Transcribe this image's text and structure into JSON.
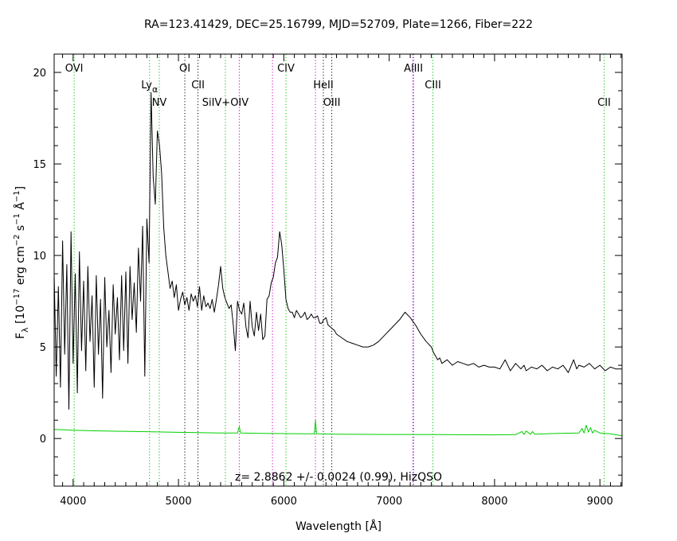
{
  "chart_data": {
    "type": "line",
    "title": "RA=123.41429, DEC=25.16799, MJD=52709, Plate=1266, Fiber=222",
    "xlabel": "Wavelength [Å]",
    "ylabel": {
      "prefix": "F",
      "sub": "λ",
      "rest": " [10",
      "e1": "−17",
      "mid": " erg cm",
      "e2": "−2",
      "mid2": " s",
      "e3": "−1",
      "mid3": " Å",
      "e4": "−1",
      "end": "]"
    },
    "xlim": [
      3820,
      9210
    ],
    "ylim": [
      -2.6,
      21.0
    ],
    "xticks": [
      4000,
      5000,
      6000,
      7000,
      8000,
      9000
    ],
    "yticks": [
      0,
      5,
      10,
      15,
      20
    ],
    "grid": false,
    "annotation": "z= 2.8862 +/- 0.0024 (0.99), HizQSO",
    "lines": [
      {
        "label": "OVI",
        "x": 4010,
        "color": "#00c000",
        "row": 1
      },
      {
        "label": "Lyα",
        "x": 4725,
        "color": "#00c000",
        "row": 2
      },
      {
        "label": "NV",
        "x": 4818,
        "color": "#00c000",
        "row": 3
      },
      {
        "label": "OI",
        "x": 5060,
        "color": "#000000",
        "row": 1
      },
      {
        "label": "CII",
        "x": 5185,
        "color": "#000000",
        "row": 2
      },
      {
        "label": "SiIV+OIV",
        "x": 5445,
        "color": "#00c000",
        "row": 3
      },
      {
        "label": "",
        "x": 5577,
        "color": "#c000c0",
        "row": 0
      },
      {
        "label": "",
        "x": 5892,
        "color": "#c000c0",
        "row": 0
      },
      {
        "label": "CIV",
        "x": 6020,
        "color": "#00c000",
        "row": 1
      },
      {
        "label": "",
        "x": 6300,
        "color": "#c000c0",
        "row": 0
      },
      {
        "label": "HeII",
        "x": 6375,
        "color": "#000000",
        "row": 2
      },
      {
        "label": "OIII",
        "x": 6455,
        "color": "#000000",
        "row": 3
      },
      {
        "label": "AlIII",
        "x": 7230,
        "color": "#0000c0",
        "row": 1
      },
      {
        "label": "",
        "x": 7225,
        "color": "#c000c0",
        "row": 0
      },
      {
        "label": "CIII",
        "x": 7415,
        "color": "#00c000",
        "row": 2
      },
      {
        "label": "CII",
        "x": 9040,
        "color": "#00c000",
        "row": 3
      }
    ],
    "series": [
      {
        "color": "#000000",
        "x": [
          3820,
          3840,
          3860,
          3880,
          3900,
          3920,
          3940,
          3960,
          3980,
          4000,
          4020,
          4040,
          4060,
          4080,
          4100,
          4120,
          4140,
          4160,
          4180,
          4200,
          4220,
          4240,
          4260,
          4280,
          4300,
          4320,
          4340,
          4360,
          4380,
          4400,
          4420,
          4440,
          4460,
          4480,
          4500,
          4520,
          4540,
          4560,
          4580,
          4600,
          4620,
          4640,
          4660,
          4680,
          4700,
          4720,
          4740,
          4760,
          4780,
          4800,
          4820,
          4840,
          4860,
          4880,
          4900,
          4920,
          4940,
          4960,
          4980,
          5000,
          5020,
          5040,
          5060,
          5080,
          5100,
          5120,
          5140,
          5160,
          5180,
          5200,
          5220,
          5240,
          5260,
          5280,
          5300,
          5320,
          5340,
          5360,
          5380,
          5400,
          5420,
          5440,
          5460,
          5480,
          5500,
          5520,
          5540,
          5560,
          5580,
          5600,
          5620,
          5640,
          5660,
          5680,
          5700,
          5720,
          5740,
          5760,
          5780,
          5800,
          5820,
          5840,
          5860,
          5880,
          5900,
          5920,
          5940,
          5960,
          5980,
          6000,
          6020,
          6040,
          6060,
          6080,
          6100,
          6120,
          6140,
          6160,
          6180,
          6200,
          6220,
          6240,
          6260,
          6280,
          6300,
          6320,
          6340,
          6360,
          6380,
          6400,
          6420,
          6440,
          6460,
          6480,
          6500,
          6550,
          6600,
          6650,
          6700,
          6750,
          6800,
          6850,
          6900,
          6950,
          7000,
          7050,
          7100,
          7150,
          7200,
          7250,
          7300,
          7350,
          7400,
          7420,
          7440,
          7460,
          7480,
          7500,
          7550,
          7600,
          7650,
          7700,
          7750,
          7800,
          7850,
          7900,
          7950,
          8000,
          8050,
          8100,
          8150,
          8200,
          8250,
          8280,
          8300,
          8350,
          8400,
          8450,
          8500,
          8550,
          8600,
          8650,
          8700,
          8750,
          8780,
          8800,
          8850,
          8900,
          8950,
          9000,
          9050,
          9100,
          9150,
          9210
        ],
        "y": [
          9.0,
          3.4,
          8.3,
          2.8,
          10.8,
          4.6,
          9.5,
          1.6,
          11.3,
          4.1,
          9.0,
          2.5,
          10.2,
          4.8,
          8.6,
          3.7,
          9.4,
          5.3,
          7.8,
          2.8,
          8.9,
          4.6,
          7.6,
          2.2,
          8.8,
          5.0,
          7.0,
          3.6,
          8.4,
          5.7,
          7.7,
          4.3,
          8.9,
          4.8,
          9.1,
          4.1,
          9.4,
          6.5,
          8.5,
          5.8,
          10.4,
          7.5,
          11.6,
          3.4,
          12.0,
          9.6,
          18.9,
          14.3,
          12.8,
          16.8,
          16.0,
          14.5,
          11.5,
          10.0,
          9.1,
          8.2,
          8.6,
          7.7,
          8.4,
          7.0,
          7.6,
          8.0,
          7.3,
          7.7,
          7.0,
          7.9,
          7.5,
          7.8,
          7.2,
          8.3,
          7.0,
          7.8,
          7.2,
          7.4,
          7.1,
          7.6,
          6.9,
          7.6,
          8.4,
          9.4,
          8.2,
          7.7,
          7.4,
          7.1,
          7.3,
          6.2,
          4.8,
          7.5,
          7.0,
          6.8,
          7.4,
          6.1,
          5.5,
          7.5,
          6.1,
          5.6,
          6.9,
          5.9,
          6.8,
          5.4,
          5.6,
          7.6,
          7.8,
          8.5,
          8.8,
          9.6,
          9.9,
          11.3,
          10.6,
          9.2,
          7.6,
          7.1,
          6.9,
          6.9,
          6.6,
          7.0,
          6.8,
          6.6,
          6.7,
          6.9,
          6.5,
          6.6,
          6.8,
          6.6,
          6.6,
          6.7,
          6.3,
          6.3,
          6.5,
          6.6,
          6.2,
          6.1,
          6.0,
          5.9,
          5.7,
          5.5,
          5.3,
          5.2,
          5.1,
          5.0,
          5.0,
          5.1,
          5.3,
          5.6,
          5.9,
          6.2,
          6.5,
          6.9,
          6.6,
          6.2,
          5.7,
          5.3,
          5.0,
          4.7,
          4.5,
          4.3,
          4.4,
          4.1,
          4.3,
          4.0,
          4.2,
          4.1,
          4.0,
          4.1,
          3.9,
          4.0,
          3.9,
          3.9,
          3.8,
          4.3,
          3.7,
          4.1,
          3.8,
          4.0,
          3.7,
          3.9,
          3.8,
          4.0,
          3.7,
          3.9,
          3.8,
          4.0,
          3.6,
          4.3,
          3.8,
          4.0,
          3.9,
          4.1,
          3.8,
          4.0,
          3.7,
          3.9,
          3.8,
          3.8
        ]
      },
      {
        "color": "#00d000",
        "x": [
          3820,
          4000,
          4200,
          4400,
          4600,
          4800,
          5000,
          5200,
          5400,
          5560,
          5577,
          5590,
          5800,
          6000,
          6200,
          6290,
          6300,
          6310,
          6500,
          7000,
          7500,
          8000,
          8200,
          8260,
          8280,
          8300,
          8340,
          8360,
          8380,
          8600,
          8800,
          8830,
          8850,
          8870,
          8890,
          8910,
          8930,
          8950,
          9000,
          9100,
          9210
        ],
        "y": [
          0.5,
          0.45,
          0.42,
          0.4,
          0.38,
          0.36,
          0.34,
          0.32,
          0.3,
          0.3,
          0.65,
          0.3,
          0.28,
          0.27,
          0.26,
          0.26,
          1.0,
          0.26,
          0.24,
          0.22,
          0.21,
          0.2,
          0.21,
          0.38,
          0.22,
          0.41,
          0.23,
          0.38,
          0.24,
          0.28,
          0.3,
          0.55,
          0.3,
          0.72,
          0.35,
          0.6,
          0.3,
          0.45,
          0.3,
          0.26,
          0.15
        ]
      }
    ]
  }
}
